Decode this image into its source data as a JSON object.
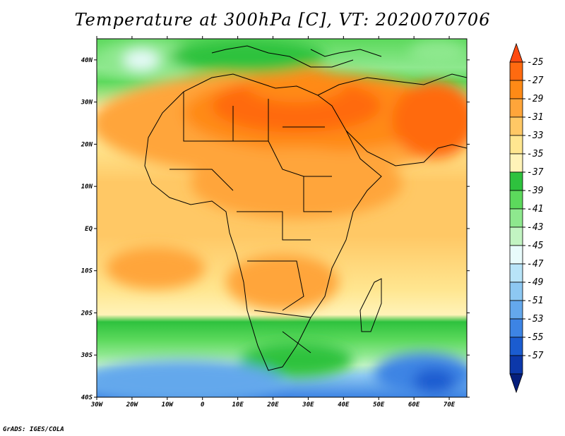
{
  "title": "Temperature at 300hPa [C], VT: 2020070706",
  "credit": "GrADS: IGES/COLA",
  "map": {
    "lon_labels": [
      "30W",
      "20W",
      "10W",
      "0",
      "10E",
      "20E",
      "30E",
      "40E",
      "50E",
      "60E",
      "70E"
    ],
    "lat_labels": [
      "40N",
      "30N",
      "20N",
      "10N",
      "EQ",
      "10S",
      "20S",
      "30S",
      "40S"
    ],
    "lon_range": [
      -30,
      75
    ],
    "lat_range": [
      -40,
      45
    ]
  },
  "colorbar": {
    "labels": [
      "-25",
      "-27",
      "-29",
      "-31",
      "-33",
      "-35",
      "-37",
      "-39",
      "-41",
      "-43",
      "-45",
      "-47",
      "-49",
      "-51",
      "-53",
      "-55",
      "-57"
    ],
    "colors": [
      "#ff4a10",
      "#ff6a10",
      "#ff8a16",
      "#ffa53a",
      "#ffc865",
      "#ffe690",
      "#fff3b8",
      "#2ec23e",
      "#5cd95c",
      "#8ee88e",
      "#c2f4c2",
      "#e8fbfb",
      "#b8e4f8",
      "#8dc8f2",
      "#64a8ec",
      "#3d84e4",
      "#1b5cd0",
      "#0c38aa",
      "#051e7c"
    ]
  }
}
